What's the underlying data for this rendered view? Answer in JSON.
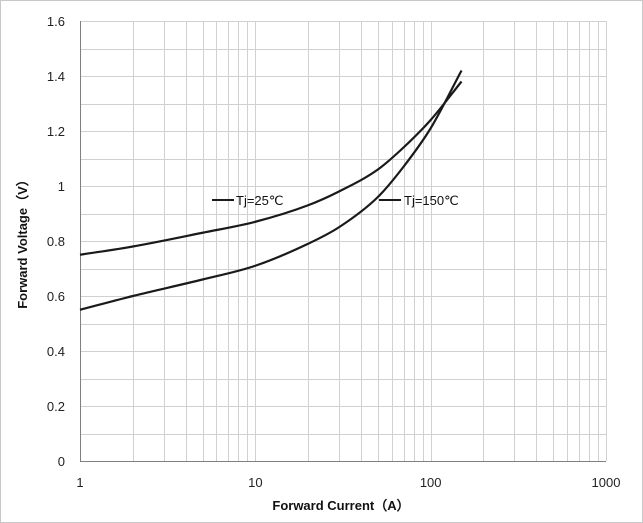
{
  "chart_data": {
    "type": "line",
    "xlabel": "Forward Current（A）",
    "ylabel": "Forward Voltage（V）",
    "x_scale": "log",
    "xlim": [
      1,
      1000
    ],
    "ylim": [
      0,
      1.6
    ],
    "x_ticks": [
      1,
      10,
      100,
      1000
    ],
    "x_tick_labels": [
      "1",
      "10",
      "100",
      "1000"
    ],
    "y_ticks": [
      0,
      0.2,
      0.4,
      0.6,
      0.8,
      1,
      1.2,
      1.4,
      1.6
    ],
    "y_tick_labels": [
      "0",
      "0.2",
      "0.4",
      "0.6",
      "0.8",
      "1",
      "1.2",
      "1.4",
      "1.6"
    ],
    "grid": true,
    "series": [
      {
        "name": "Tj=25℃",
        "x": [
          1,
          2,
          5,
          10,
          20,
          30,
          50,
          70,
          100,
          150
        ],
        "y": [
          0.75,
          0.78,
          0.83,
          0.87,
          0.93,
          0.98,
          1.06,
          1.14,
          1.24,
          1.38
        ]
      },
      {
        "name": "Tj=150℃",
        "x": [
          1,
          2,
          5,
          10,
          20,
          30,
          50,
          70,
          100,
          150
        ],
        "y": [
          0.55,
          0.6,
          0.66,
          0.71,
          0.79,
          0.85,
          0.96,
          1.07,
          1.21,
          1.42
        ]
      }
    ],
    "annotations": [
      {
        "text": "Tj=25℃",
        "series": "Tj=25℃"
      },
      {
        "text": "Tj=150℃",
        "series": "Tj=150℃"
      }
    ]
  }
}
